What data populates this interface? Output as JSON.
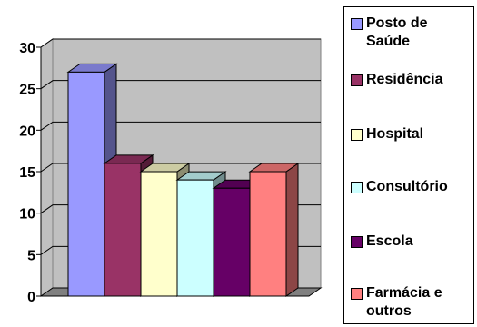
{
  "chart_data": {
    "type": "bar",
    "title": "",
    "xlabel": "",
    "ylabel": "",
    "ylim": [
      0,
      30
    ],
    "yticks": [
      "0",
      "5",
      "10",
      "15",
      "20",
      "25",
      "30"
    ],
    "grid": true,
    "legend_position": "right",
    "three_d": true,
    "series": [
      {
        "name": "Posto de\nSaúde",
        "value": 27,
        "color": "#9999FF"
      },
      {
        "name": "Residência",
        "value": 16,
        "color": "#993366"
      },
      {
        "name": "Hospital",
        "value": 15,
        "color": "#FFFFCC"
      },
      {
        "name": "Consultório",
        "value": 14,
        "color": "#CCFFFF"
      },
      {
        "name": "Escola",
        "value": 13,
        "color": "#660066"
      },
      {
        "name": "Farmácia e\noutros",
        "value": 15,
        "color": "#FF8080"
      }
    ],
    "plot_background": "#C0C0C0",
    "floor_color": "#808080"
  }
}
